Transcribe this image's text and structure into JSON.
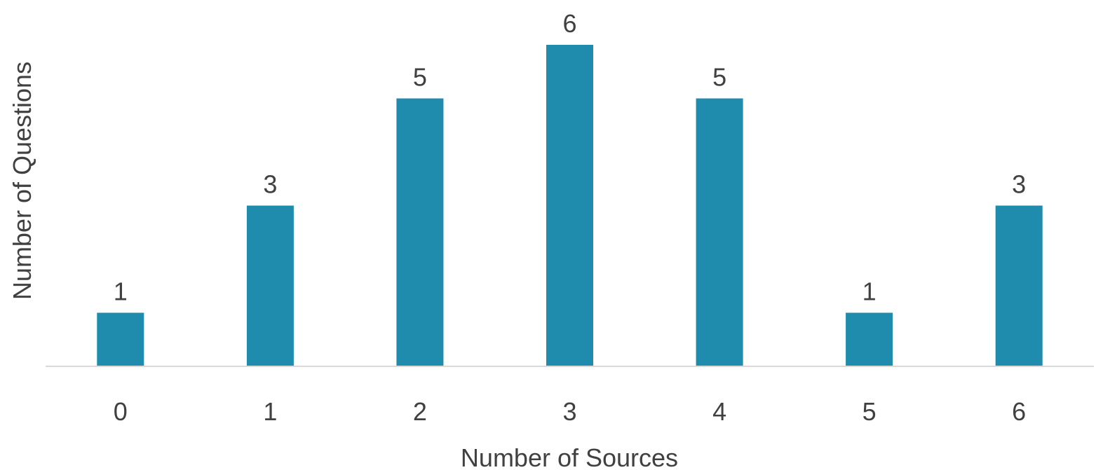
{
  "colors": {
    "bar": "#1f8bad",
    "text": "#404040",
    "baseline": "#d9d9d9"
  },
  "chart_data": {
    "type": "bar",
    "categories": [
      "0",
      "1",
      "2",
      "3",
      "4",
      "5",
      "6"
    ],
    "values": [
      1,
      3,
      5,
      6,
      5,
      1,
      3
    ],
    "title": "",
    "xlabel": "Number of Sources",
    "ylabel": "Number of Questions",
    "ylim": [
      0,
      6
    ],
    "grid": false,
    "legend": "none",
    "data_labels": true
  }
}
